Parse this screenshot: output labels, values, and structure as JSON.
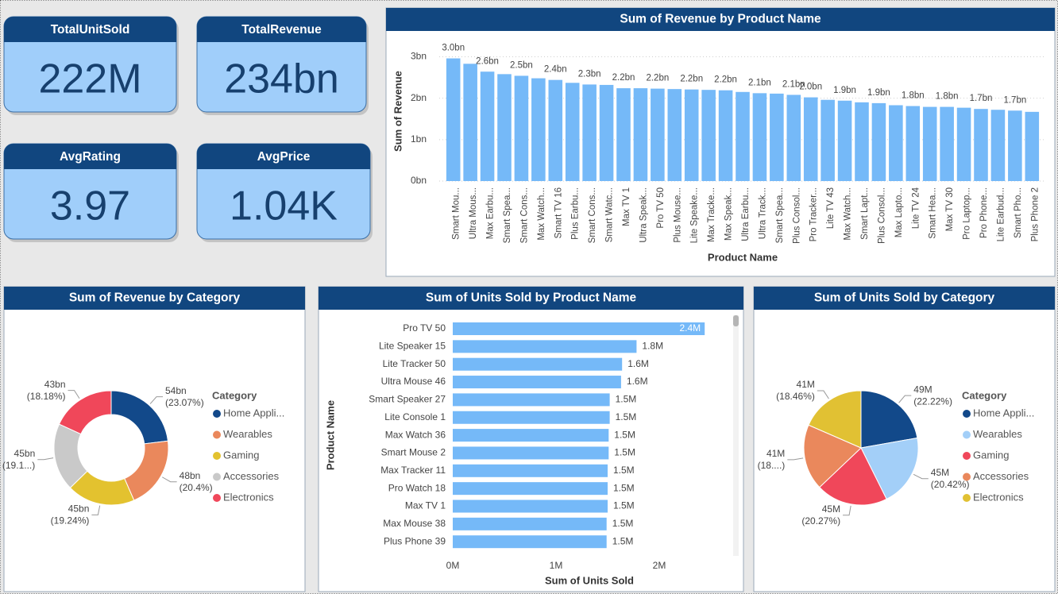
{
  "cards": [
    {
      "title": "TotalUnitSold",
      "value": "222M"
    },
    {
      "title": "TotalRevenue",
      "value": "234bn"
    },
    {
      "title": "AvgRating",
      "value": "3.97"
    },
    {
      "title": "AvgPrice",
      "value": "1.04K"
    }
  ],
  "chart_data": [
    {
      "type": "bar",
      "title": "Sum of Revenue by Product Name",
      "y_label": "Sum of Revenue",
      "x_label": "Product Name",
      "categories": [
        "Smart Mou...",
        "Ultra Mous...",
        "Max Earbu...",
        "Smart Spea...",
        "Smart Cons...",
        "Max Watch...",
        "Smart TV 16",
        "Plus Earbu...",
        "Smart Cons...",
        "Smart Watc...",
        "Max TV 1",
        "Ultra Speak...",
        "Pro TV 50",
        "Plus Mouse...",
        "Lite Speake...",
        "Max Tracke...",
        "Max Speak...",
        "Ultra Earbu...",
        "Ultra Track...",
        "Smart Spea...",
        "Plus Consol...",
        "Pro Tracker...",
        "Lite TV 43",
        "Max Watch...",
        "Smart Lapt...",
        "Plus Consol...",
        "Max Lapto...",
        "Lite TV 24",
        "Smart Hea...",
        "Max TV 30",
        "Pro Laptop...",
        "Pro Phone...",
        "Lite Earbud...",
        "Smart Pho...",
        "Plus Phone 2"
      ],
      "values": [
        2.96,
        2.83,
        2.64,
        2.58,
        2.54,
        2.48,
        2.44,
        2.37,
        2.33,
        2.32,
        2.24,
        2.24,
        2.23,
        2.22,
        2.21,
        2.2,
        2.19,
        2.15,
        2.12,
        2.11,
        2.08,
        2.02,
        1.96,
        1.94,
        1.9,
        1.88,
        1.83,
        1.81,
        1.79,
        1.79,
        1.77,
        1.74,
        1.72,
        1.7,
        1.67
      ],
      "value_labels": [
        "3.0bn",
        null,
        "2.6bn",
        null,
        "2.5bn",
        null,
        "2.4bn",
        null,
        "2.3bn",
        null,
        "2.2bn",
        null,
        "2.2bn",
        null,
        "2.2bn",
        null,
        "2.2bn",
        null,
        "2.1bn",
        null,
        "2.1bn",
        "2.0bn",
        null,
        "1.9bn",
        null,
        "1.9bn",
        null,
        "1.8bn",
        null,
        "1.8bn",
        null,
        "1.7bn",
        null,
        "1.7bn",
        null
      ],
      "color": "#75b9f8",
      "ylim": [
        0,
        3.2
      ],
      "yticks": [
        {
          "value": 0,
          "label": "0bn"
        },
        {
          "value": 1,
          "label": "1bn"
        },
        {
          "value": 2,
          "label": "2bn"
        },
        {
          "value": 3,
          "label": "3bn"
        }
      ],
      "grid": true
    },
    {
      "type": "donut",
      "title": "Sum of Revenue by Category",
      "legend_title": "Category",
      "categories": [
        "Home Appli...",
        "Wearables",
        "Gaming",
        "Accessories",
        "Electronics"
      ],
      "values": [
        53.98,
        47.74,
        45.02,
        44.7,
        42.54
      ],
      "value_labels": [
        "54bn",
        "48bn",
        "45bn",
        "45bn",
        "43bn"
      ],
      "percent_labels": [
        "(23.07%)",
        "(20.4%)",
        "(19.24%)",
        "(19.1...)",
        "(18.18%)"
      ],
      "colors": [
        "#12498a",
        "#ea885c",
        "#e3c22f",
        "#c9c9c9",
        "#f0475a"
      ]
    },
    {
      "type": "barh",
      "title": "Sum of Units Sold by Product Name",
      "x_label": "Sum of Units Sold",
      "y_label": "Product Name",
      "categories": [
        "Pro TV 50",
        "Lite Speaker 15",
        "Lite Tracker 50",
        "Ultra Mouse 46",
        "Smart Speaker 27",
        "Lite Console 1",
        "Max Watch 36",
        "Smart Mouse 2",
        "Max Tracker 11",
        "Pro Watch 18",
        "Max TV 1",
        "Max Mouse 38",
        "Plus Phone 39"
      ],
      "values": [
        2.44,
        1.78,
        1.64,
        1.63,
        1.52,
        1.52,
        1.51,
        1.51,
        1.5,
        1.5,
        1.5,
        1.49,
        1.49
      ],
      "value_labels": [
        "2.4M",
        "1.8M",
        "1.6M",
        "1.6M",
        "1.5M",
        "1.5M",
        "1.5M",
        "1.5M",
        "1.5M",
        "1.5M",
        "1.5M",
        "1.5M",
        "1.5M"
      ],
      "color": "#75b9f8",
      "xlim": [
        0,
        2.7
      ],
      "xticks": [
        {
          "value": 0,
          "label": "0M"
        },
        {
          "value": 1,
          "label": "1M"
        },
        {
          "value": 2,
          "label": "2M"
        }
      ]
    },
    {
      "type": "pie",
      "title": "Sum of Units Sold by Category",
      "legend_title": "Category",
      "categories": [
        "Home Appli...",
        "Wearables",
        "Gaming",
        "Accessories",
        "Electronics"
      ],
      "values": [
        49.33,
        45.33,
        45.0,
        41.36,
        40.98
      ],
      "value_labels": [
        "49M",
        "45M",
        "45M",
        "41M",
        "41M"
      ],
      "percent_labels": [
        "(22.22%)",
        "(20.42%)",
        "(20.27%)",
        "(18....)",
        "(18.46%)"
      ],
      "colors": [
        "#12498a",
        "#a3cff8",
        "#f0475a",
        "#ea885c",
        "#e1c133"
      ]
    }
  ]
}
